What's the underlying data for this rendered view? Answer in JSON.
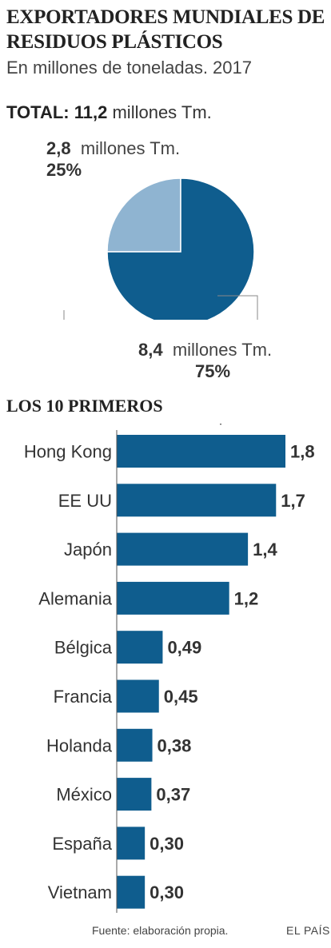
{
  "title": "EXPORTADORES MUNDIALES DE RESIDUOS PLÁSTICOS",
  "subtitle": "En millones de toneladas. 2017",
  "total": {
    "label": "TOTAL:",
    "value": "11,2",
    "unit": "millones Tm."
  },
  "colors": {
    "dark": "#0f5d8e",
    "light": "#8fb4d1",
    "text": "#333333"
  },
  "chart_data": [
    {
      "type": "pie",
      "slices": [
        {
          "value": 2.8,
          "value_label": "2,8",
          "unit": "millones Tm.",
          "percent": 25,
          "percent_label": "25%",
          "color": "#8fb4d1"
        },
        {
          "value": 8.4,
          "value_label": "8,4",
          "unit": "millones Tm.",
          "percent": 75,
          "percent_label": "75%",
          "color": "#0f5d8e"
        }
      ]
    },
    {
      "type": "bar",
      "orientation": "horizontal",
      "title": "LOS 10 PRIMEROS",
      "categories": [
        "Hong Kong",
        "EE UU",
        "Japón",
        "Alemania",
        "Bélgica",
        "Francia",
        "Holanda",
        "México",
        "España",
        "Vietnam"
      ],
      "values": [
        1.8,
        1.7,
        1.4,
        1.2,
        0.49,
        0.45,
        0.38,
        0.37,
        0.3,
        0.3
      ],
      "value_labels": [
        "1,8",
        "1,7",
        "1,4",
        "1,2",
        "0,49",
        "0,45",
        "0,38",
        "0,37",
        "0,30",
        "0,30"
      ],
      "xlim": [
        0,
        1.8
      ],
      "color": "#0f5d8e"
    }
  ],
  "footer": {
    "source": "Fuente: elaboración propia.",
    "brand": "EL PAÍS"
  }
}
